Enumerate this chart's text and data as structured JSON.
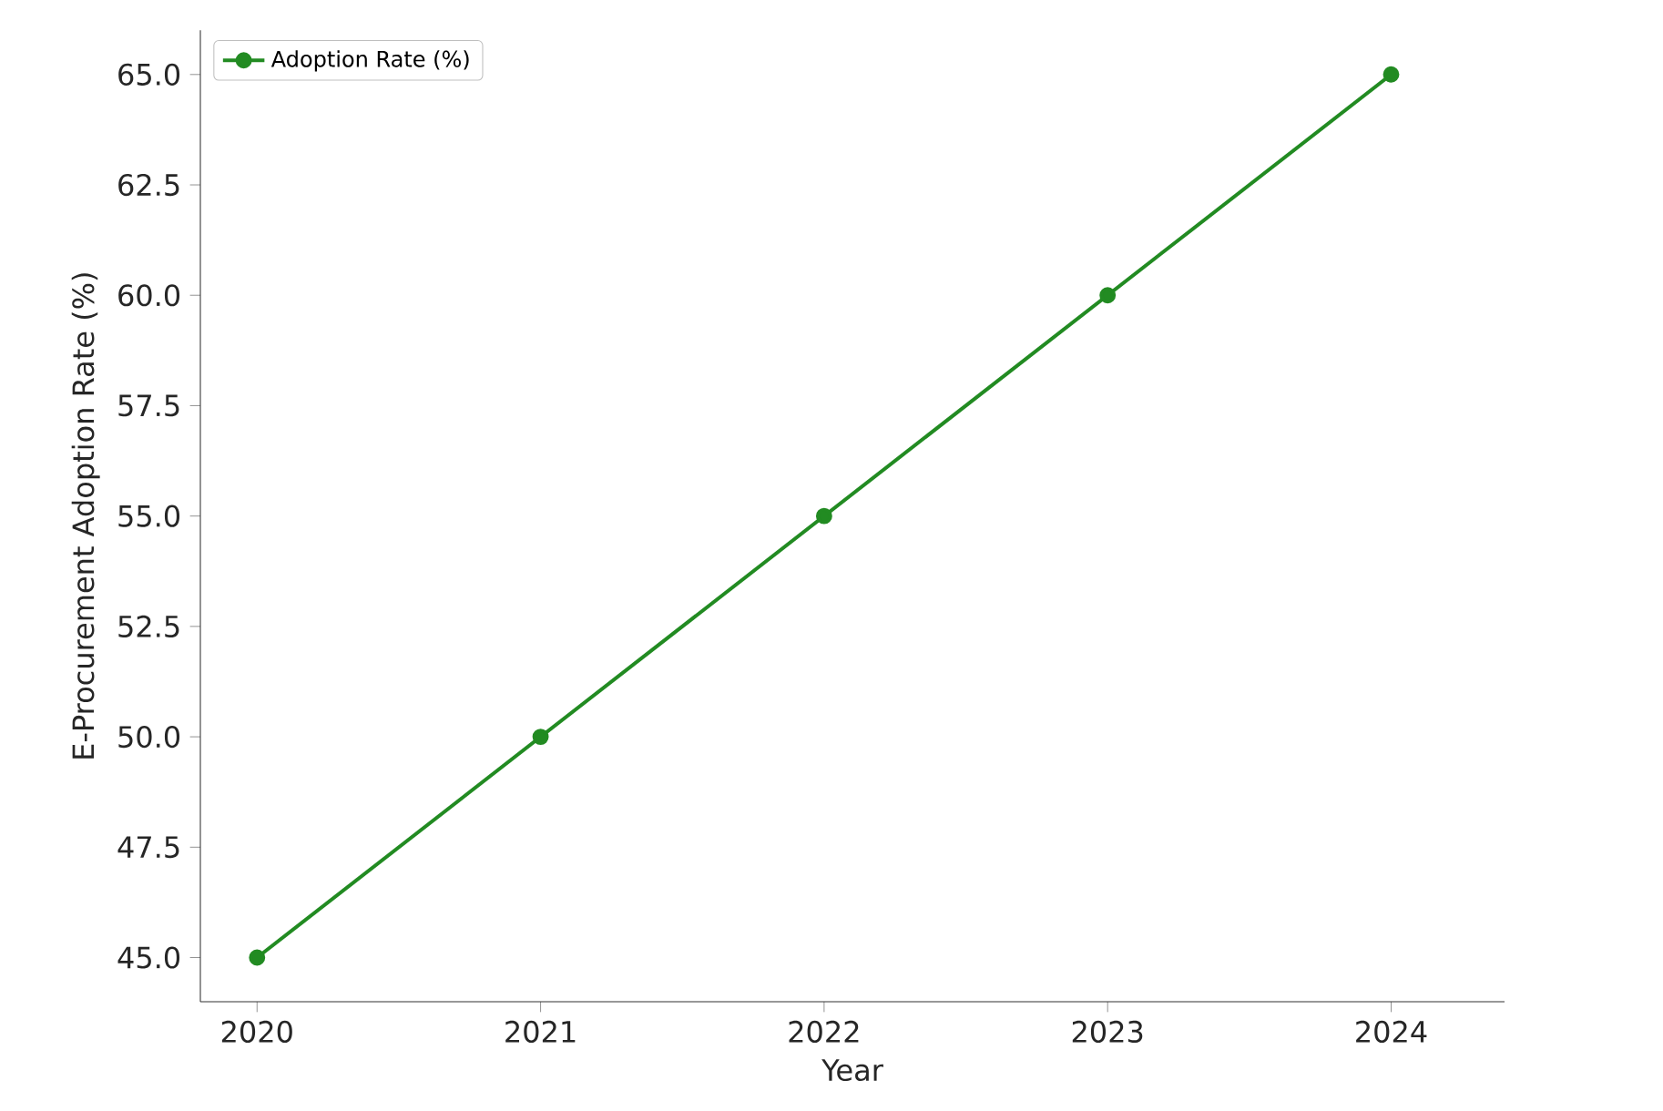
{
  "chart_data": {
    "type": "line",
    "xlabel": "Year",
    "ylabel": "E-Procurement Adoption Rate (%)",
    "x": [
      2020,
      2021,
      2022,
      2023,
      2024
    ],
    "series": [
      {
        "name": "Adoption Rate (%)",
        "color": "#228b22",
        "values": [
          45,
          50,
          55,
          60,
          65
        ]
      }
    ],
    "xlim": [
      2019.8,
      2024.4
    ],
    "ylim": [
      44,
      66
    ],
    "xticks": [
      2020,
      2021,
      2022,
      2023,
      2024
    ],
    "yticks": [
      {
        "value": 45,
        "label": "45.0"
      },
      {
        "value": 47.5,
        "label": "47.5"
      },
      {
        "value": 50,
        "label": "50.0"
      },
      {
        "value": 52.5,
        "label": "52.5"
      },
      {
        "value": 55,
        "label": "55.0"
      },
      {
        "value": 57.5,
        "label": "57.5"
      },
      {
        "value": 60,
        "label": "60.0"
      },
      {
        "value": 62.5,
        "label": "62.5"
      },
      {
        "value": 65,
        "label": "65.0"
      }
    ],
    "legend": "top left",
    "grid": false,
    "marker": "circle",
    "line_style": "solid"
  }
}
